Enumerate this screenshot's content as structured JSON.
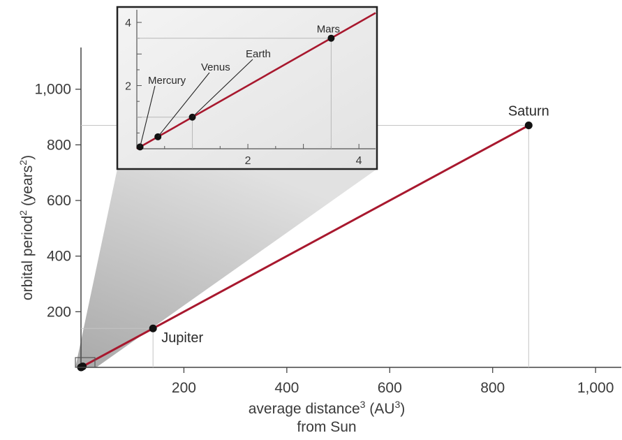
{
  "chart_data": [
    {
      "type": "line",
      "role": "main",
      "xlabel": "average distance³ (AU³)",
      "xlabel_parts": {
        "base": "average distance",
        "sup1": "3",
        "mid": " (AU",
        "sup2": "3",
        "end": ")"
      },
      "xlabel_line2": "from Sun",
      "ylabel": "orbital period² (years²)",
      "ylabel_parts": {
        "base": "orbital period",
        "sup": "2",
        "rest": " (years",
        "sup2": "2",
        "end": ")"
      },
      "xlim": [
        0,
        1050
      ],
      "ylim": [
        0,
        1150
      ],
      "x_ticks": [
        200,
        400,
        600,
        800,
        1000
      ],
      "x_tick_labels": [
        "200",
        "400",
        "600",
        "800",
        "1,000"
      ],
      "y_ticks": [
        200,
        400,
        600,
        800,
        1000
      ],
      "y_tick_labels": [
        "200",
        "400",
        "600",
        "800",
        "1,000"
      ],
      "line_color": "#a8182e",
      "points": [
        {
          "name": "Mercury",
          "x": 0.058,
          "y": 0.058,
          "labeled": false
        },
        {
          "name": "Venus",
          "x": 0.38,
          "y": 0.38,
          "labeled": false
        },
        {
          "name": "Earth",
          "x": 1,
          "y": 1,
          "labeled": false
        },
        {
          "name": "Mars",
          "x": 3.5,
          "y": 3.5,
          "labeled": false
        },
        {
          "name": "Jupiter",
          "x": 140,
          "y": 140,
          "labeled": true
        },
        {
          "name": "Saturn",
          "x": 870,
          "y": 870,
          "labeled": true
        }
      ]
    },
    {
      "type": "line",
      "role": "inset",
      "xlim": [
        0,
        4.3
      ],
      "ylim": [
        0,
        4.4
      ],
      "x_ticks": [
        2,
        4
      ],
      "x_tick_labels": [
        "2",
        "4"
      ],
      "y_ticks": [
        2,
        4
      ],
      "y_tick_labels": [
        "2",
        "4"
      ],
      "line_color": "#a8182e",
      "points": [
        {
          "name": "Mercury",
          "x": 0.058,
          "y": 0.058
        },
        {
          "name": "Venus",
          "x": 0.38,
          "y": 0.38
        },
        {
          "name": "Earth",
          "x": 1,
          "y": 1
        },
        {
          "name": "Mars",
          "x": 3.5,
          "y": 3.5
        }
      ]
    }
  ]
}
